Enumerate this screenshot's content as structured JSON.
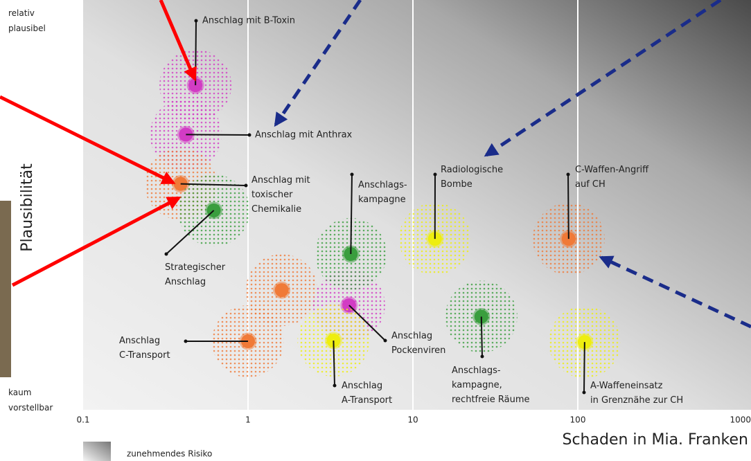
{
  "chart_data": {
    "type": "scatter",
    "y_title": "Plausibilität",
    "x_title": "Schaden in Mia. Franken",
    "legend_label": "zunehmendes Risiko",
    "xlog": true,
    "xlim": [
      0.1,
      1000
    ],
    "xticks": [
      0.1,
      1,
      10,
      100,
      1000
    ],
    "ylim": [
      0,
      1
    ],
    "yticks": [
      {
        "value": 1,
        "label": "relativ\nplausibel"
      },
      {
        "value": 0,
        "label": "kaum\nvorstellbar"
      }
    ],
    "grid": true,
    "labels": [
      "Anschlag mit B-Toxin",
      "Anschlag mit Anthrax",
      "Anschlag mit\ntoxischer\nChemikalie",
      "Strategischer\nAnschlag",
      null,
      "Anschlag\nC-Transport",
      "Anschlag\nPockenviren",
      "Anschlag\nA-Transport",
      "Anschlags-\nkampagne",
      "Radiologische\nBombe",
      "C-Waffen-Angriff\nauf CH",
      "Anschlags-\nkampagne,\nrechtfreie Räume",
      "A-Waffeneinsatz\nin Grenznähe zur CH"
    ],
    "x": [
      0.48,
      0.42,
      0.39,
      0.62,
      1.6,
      1.0,
      4.1,
      3.3,
      4.2,
      13.6,
      88,
      26,
      110
    ],
    "y": [
      0.83,
      0.7,
      0.57,
      0.5,
      0.29,
      0.155,
      0.25,
      0.157,
      0.385,
      0.425,
      0.425,
      0.22,
      0.153
    ],
    "colors": [
      "#d23cc4",
      "#d23cc4",
      "#f07a38",
      "#3a9e3e",
      "#f07a38",
      "#f07a38",
      "#d23cc4",
      "#eeee10",
      "#3a9e3e",
      "#eeee10",
      "#f07a38",
      "#3a9e3e",
      "#eeee10"
    ]
  }
}
